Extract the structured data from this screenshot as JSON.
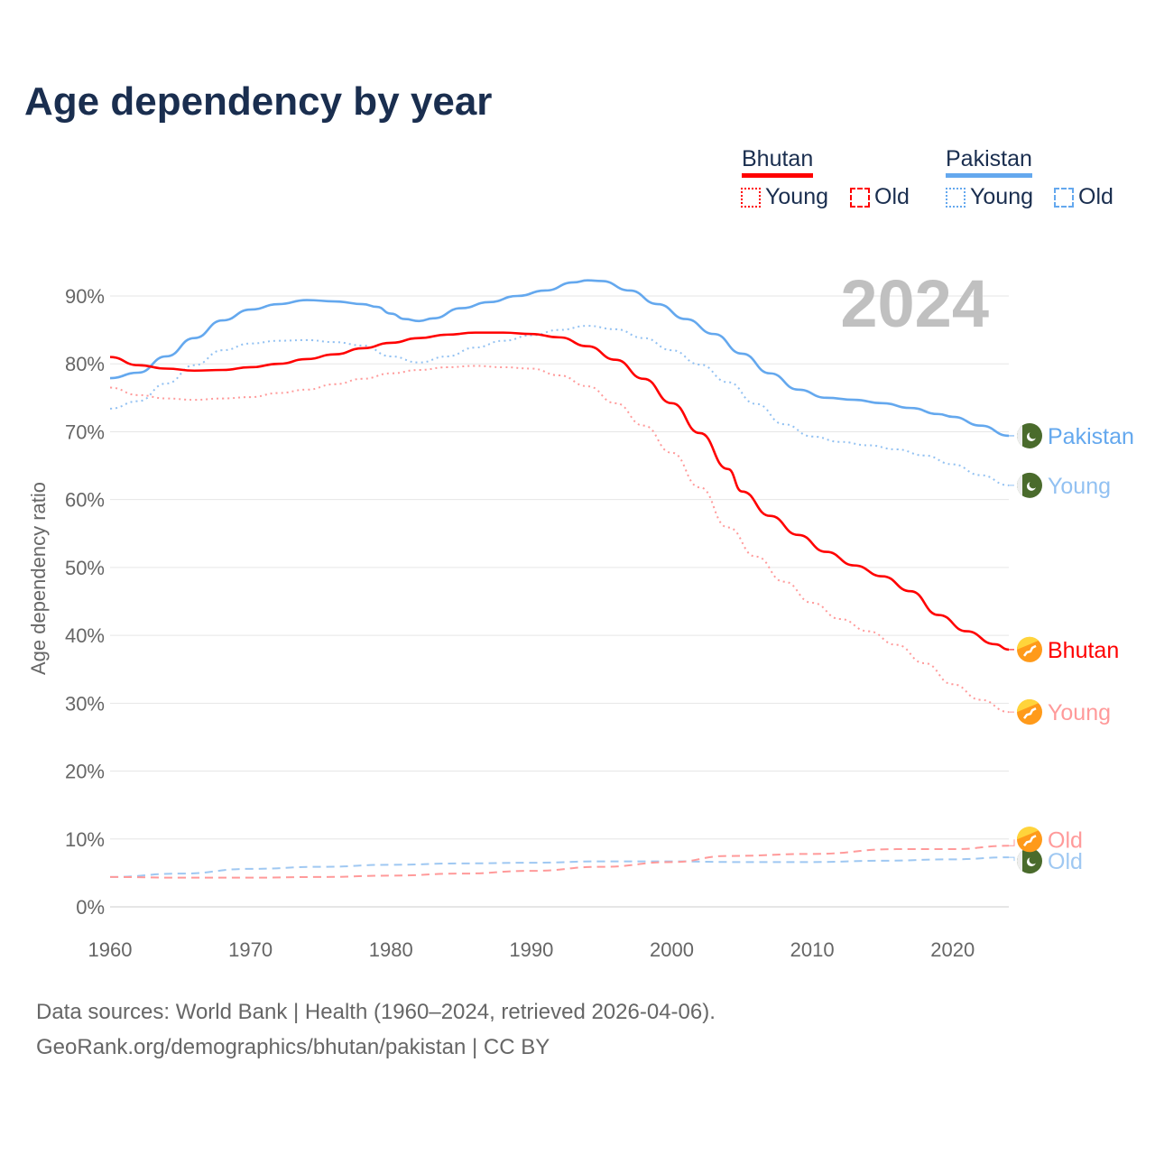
{
  "title": "Age dependency by year",
  "legend": {
    "groups": [
      {
        "name": "Bhutan",
        "color": "#ff0000",
        "items": [
          "Young",
          "Old"
        ]
      },
      {
        "name": "Pakistan",
        "color": "#64a8ee",
        "items": [
          "Young",
          "Old"
        ]
      }
    ]
  },
  "footer": {
    "line1": "Data sources: World Bank | Health (1960–2024, retrieved 2026-04-06).",
    "line2": "GeoRank.org/demographics/bhutan/pakistan | CC BY"
  },
  "chart_data": {
    "type": "line",
    "title": "Age dependency by year",
    "year_label": "2024",
    "xlabel": "",
    "ylabel": "Age dependency ratio",
    "xlim": [
      1960,
      2024
    ],
    "ylim": [
      0,
      90
    ],
    "xticks": [
      "1960",
      "1970",
      "1980",
      "1990",
      "2000",
      "2010",
      "2020"
    ],
    "yticks": [
      "0%",
      "10%",
      "20%",
      "30%",
      "40%",
      "50%",
      "60%",
      "70%",
      "80%",
      "90%"
    ],
    "grid": true,
    "legend_position": "top-right",
    "series": [
      {
        "name": "Pakistan",
        "end_label": "Pakistan",
        "country": "Pakistan",
        "style": "solid",
        "color": "#64a8ee",
        "points": [
          [
            1960,
            77.9
          ],
          [
            1962,
            78.7
          ],
          [
            1964,
            81.1
          ],
          [
            1966,
            83.8
          ],
          [
            1968,
            86.4
          ],
          [
            1970,
            88
          ],
          [
            1972,
            88.8
          ],
          [
            1974,
            89.4
          ],
          [
            1976,
            89.2
          ],
          [
            1978,
            88.8
          ],
          [
            1979,
            88.4
          ],
          [
            1980,
            87.4
          ],
          [
            1981,
            86.6
          ],
          [
            1982,
            86.3
          ],
          [
            1983,
            86.7
          ],
          [
            1985,
            88.2
          ],
          [
            1987,
            89.1
          ],
          [
            1989,
            90
          ],
          [
            1991,
            90.8
          ],
          [
            1993,
            92
          ],
          [
            1994,
            92.3
          ],
          [
            1995,
            92.2
          ],
          [
            1997,
            90.8
          ],
          [
            1999,
            88.8
          ],
          [
            2001,
            86.6
          ],
          [
            2003,
            84.4
          ],
          [
            2005,
            81.5
          ],
          [
            2007,
            78.6
          ],
          [
            2009,
            76.2
          ],
          [
            2011,
            75
          ],
          [
            2013,
            74.7
          ],
          [
            2015,
            74.2
          ],
          [
            2017,
            73.5
          ],
          [
            2019,
            72.6
          ],
          [
            2020,
            72.2
          ],
          [
            2022,
            70.9
          ],
          [
            2024,
            69.4
          ]
        ]
      },
      {
        "name": "Pakistan Young",
        "end_label": "Young",
        "country": "Pakistan",
        "style": "dotted",
        "color": "#92c1f2",
        "points": [
          [
            1960,
            73.4
          ],
          [
            1962,
            74.5
          ],
          [
            1964,
            77.1
          ],
          [
            1966,
            79.8
          ],
          [
            1968,
            82
          ],
          [
            1970,
            83
          ],
          [
            1972,
            83.4
          ],
          [
            1974,
            83.5
          ],
          [
            1976,
            83.2
          ],
          [
            1978,
            82.7
          ],
          [
            1980,
            81.1
          ],
          [
            1982,
            80.2
          ],
          [
            1984,
            81.1
          ],
          [
            1986,
            82.4
          ],
          [
            1988,
            83.4
          ],
          [
            1990,
            84.2
          ],
          [
            1992,
            85
          ],
          [
            1994,
            85.6
          ],
          [
            1996,
            85.1
          ],
          [
            1998,
            83.8
          ],
          [
            2000,
            82
          ],
          [
            2002,
            79.9
          ],
          [
            2004,
            77.3
          ],
          [
            2006,
            74.1
          ],
          [
            2008,
            71.1
          ],
          [
            2010,
            69.3
          ],
          [
            2012,
            68.5
          ],
          [
            2014,
            68
          ],
          [
            2016,
            67.4
          ],
          [
            2018,
            66.5
          ],
          [
            2020,
            65.2
          ],
          [
            2022,
            63.6
          ],
          [
            2024,
            62.1
          ]
        ]
      },
      {
        "name": "Pakistan Old",
        "end_label": "Old",
        "country": "Pakistan",
        "style": "dashed",
        "color": "#9fc8f2",
        "points": [
          [
            1960,
            4.4
          ],
          [
            1965,
            4.9
          ],
          [
            1970,
            5.6
          ],
          [
            1975,
            5.9
          ],
          [
            1980,
            6.2
          ],
          [
            1985,
            6.4
          ],
          [
            1990,
            6.5
          ],
          [
            1995,
            6.7
          ],
          [
            2000,
            6.7
          ],
          [
            2005,
            6.6
          ],
          [
            2010,
            6.6
          ],
          [
            2015,
            6.8
          ],
          [
            2020,
            7.0
          ],
          [
            2024,
            7.3
          ]
        ]
      },
      {
        "name": "Bhutan",
        "end_label": "Bhutan",
        "country": "Bhutan",
        "style": "solid",
        "color": "#ff0000",
        "points": [
          [
            1960,
            81
          ],
          [
            1962,
            79.8
          ],
          [
            1964,
            79.3
          ],
          [
            1966,
            79
          ],
          [
            1968,
            79.1
          ],
          [
            1970,
            79.5
          ],
          [
            1972,
            80
          ],
          [
            1974,
            80.7
          ],
          [
            1976,
            81.4
          ],
          [
            1978,
            82.3
          ],
          [
            1980,
            83.1
          ],
          [
            1982,
            83.8
          ],
          [
            1984,
            84.3
          ],
          [
            1986,
            84.6
          ],
          [
            1988,
            84.6
          ],
          [
            1990,
            84.4
          ],
          [
            1992,
            83.9
          ],
          [
            1994,
            82.6
          ],
          [
            1996,
            80.6
          ],
          [
            1998,
            77.8
          ],
          [
            2000,
            74.2
          ],
          [
            2002,
            69.8
          ],
          [
            2004,
            64.5
          ],
          [
            2005,
            61.2
          ],
          [
            2007,
            57.6
          ],
          [
            2009,
            54.8
          ],
          [
            2011,
            52.3
          ],
          [
            2013,
            50.3
          ],
          [
            2015,
            48.7
          ],
          [
            2017,
            46.5
          ],
          [
            2019,
            43
          ],
          [
            2021,
            40.6
          ],
          [
            2023,
            38.7
          ],
          [
            2024,
            37.9
          ]
        ]
      },
      {
        "name": "Bhutan Young",
        "end_label": "Young",
        "country": "Bhutan",
        "style": "dotted",
        "color": "#ff9a9a",
        "points": [
          [
            1960,
            76.5
          ],
          [
            1962,
            75.4
          ],
          [
            1964,
            74.9
          ],
          [
            1966,
            74.7
          ],
          [
            1968,
            74.9
          ],
          [
            1970,
            75.1
          ],
          [
            1972,
            75.7
          ],
          [
            1974,
            76.2
          ],
          [
            1976,
            77
          ],
          [
            1978,
            77.8
          ],
          [
            1980,
            78.6
          ],
          [
            1982,
            79.1
          ],
          [
            1984,
            79.5
          ],
          [
            1986,
            79.7
          ],
          [
            1988,
            79.5
          ],
          [
            1990,
            79.3
          ],
          [
            1992,
            78.3
          ],
          [
            1994,
            76.7
          ],
          [
            1996,
            74.2
          ],
          [
            1998,
            70.9
          ],
          [
            2000,
            66.9
          ],
          [
            2002,
            61.8
          ],
          [
            2004,
            55.9
          ],
          [
            2006,
            51.6
          ],
          [
            2008,
            47.9
          ],
          [
            2010,
            44.8
          ],
          [
            2012,
            42.4
          ],
          [
            2014,
            40.6
          ],
          [
            2016,
            38.6
          ],
          [
            2018,
            35.9
          ],
          [
            2020,
            32.8
          ],
          [
            2022,
            30.5
          ],
          [
            2024,
            28.7
          ]
        ]
      },
      {
        "name": "Bhutan Old",
        "end_label": "Old",
        "country": "Bhutan",
        "style": "dashed",
        "color": "#ff9a9a",
        "points": [
          [
            1960,
            4.4
          ],
          [
            1965,
            4.3
          ],
          [
            1970,
            4.3
          ],
          [
            1975,
            4.4
          ],
          [
            1980,
            4.6
          ],
          [
            1985,
            4.9
          ],
          [
            1990,
            5.3
          ],
          [
            1995,
            5.9
          ],
          [
            2000,
            6.6
          ],
          [
            2004,
            7.5
          ],
          [
            2010,
            7.8
          ],
          [
            2016,
            8.5
          ],
          [
            2020,
            8.5
          ],
          [
            2024,
            9.0
          ]
        ]
      }
    ]
  }
}
